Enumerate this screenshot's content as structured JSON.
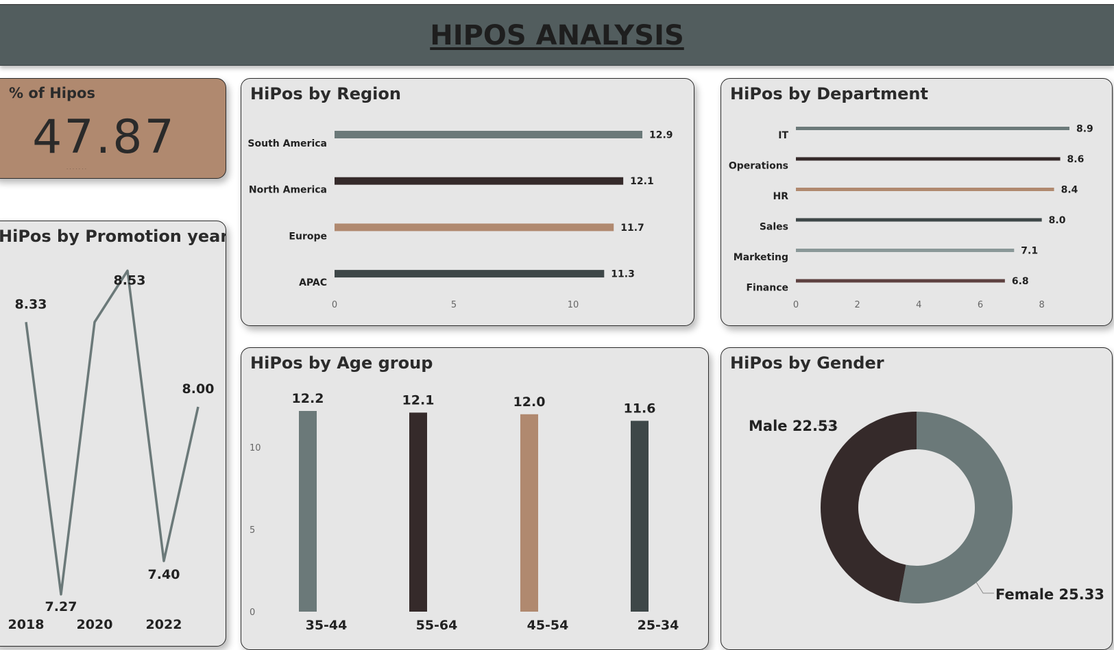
{
  "header": {
    "title": "HIPOS ANALYSIS"
  },
  "colors": {
    "slate": "#6b7979",
    "dark": "#352a2a",
    "tan": "#b0896f",
    "charcoal": "#3e4748",
    "gray": "#8a9898",
    "brown": "#5d4140"
  },
  "kpi": {
    "title": "% of Hipos",
    "value": "47.87"
  },
  "region": {
    "title": "HiPos by Region",
    "chart_data": {
      "type": "bar",
      "orientation": "horizontal",
      "categories": [
        "South America",
        "North America",
        "Europe",
        "APAC"
      ],
      "values": [
        12.9,
        12.1,
        11.7,
        11.3
      ],
      "labels": [
        "12.9",
        "12.1",
        "11.7",
        "11.3"
      ],
      "colors": [
        "#6b7979",
        "#352a2a",
        "#b0896f",
        "#3e4748"
      ],
      "xticks": [
        "0",
        "5",
        "10"
      ],
      "xlim": [
        0,
        12.9
      ]
    }
  },
  "department": {
    "title": "HiPos by Department",
    "chart_data": {
      "type": "bar",
      "orientation": "horizontal",
      "categories": [
        "IT",
        "Operations",
        "HR",
        "Sales",
        "Marketing",
        "Finance"
      ],
      "values": [
        8.9,
        8.6,
        8.4,
        8.0,
        7.1,
        6.8
      ],
      "labels": [
        "8.9",
        "8.6",
        "8.4",
        "8.0",
        "7.1",
        "6.8"
      ],
      "colors": [
        "#6b7979",
        "#352a2a",
        "#b0896f",
        "#3e4748",
        "#8a9898",
        "#5d4140"
      ],
      "xticks": [
        "0",
        "2",
        "4",
        "6",
        "8"
      ],
      "xlim": [
        0,
        8.9
      ]
    }
  },
  "promotion": {
    "title": "HiPos by Promotion year",
    "chart_data": {
      "type": "line",
      "x": [
        2018,
        2019,
        2020,
        2021,
        2022,
        2023
      ],
      "values": [
        8.33,
        7.27,
        8.33,
        8.53,
        7.4,
        8.0
      ],
      "labels": [
        "8.33",
        "7.27",
        "",
        "8.53",
        "7.40",
        "8.00"
      ],
      "xticks": [
        "2018",
        "2020",
        "2022"
      ],
      "yticks": [
        "7.2",
        "7.4",
        "7.6",
        "7.8",
        "8.0",
        "8.2",
        "8.4",
        "8.6"
      ],
      "ylim": [
        7.2,
        8.6
      ],
      "color": "#6b7979"
    }
  },
  "age": {
    "title": "HiPos by Age group",
    "chart_data": {
      "type": "bar",
      "orientation": "vertical",
      "categories": [
        "35-44",
        "55-64",
        "45-54",
        "25-34"
      ],
      "values": [
        12.2,
        12.1,
        12.0,
        11.6
      ],
      "labels": [
        "12.2",
        "12.1",
        "12.0",
        "11.6"
      ],
      "colors": [
        "#6b7979",
        "#352a2a",
        "#b0896f",
        "#3e4748"
      ],
      "yticks": [
        "0",
        "5",
        "10"
      ],
      "ylim": [
        0,
        12.2
      ]
    }
  },
  "gender": {
    "title": "HiPos by Gender",
    "chart_data": {
      "type": "pie",
      "donut": true,
      "categories": [
        "Female",
        "Male"
      ],
      "values": [
        25.33,
        22.53
      ],
      "labels": [
        "Female 25.33",
        "Male 22.53"
      ],
      "colors": [
        "#6b7979",
        "#352a2a"
      ]
    }
  }
}
